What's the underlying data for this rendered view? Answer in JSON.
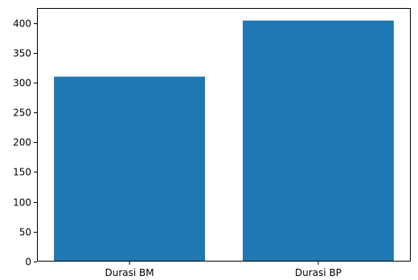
{
  "chart_data": {
    "type": "bar",
    "categories": [
      "Durasi BM",
      "Durasi BP"
    ],
    "values": [
      310,
      404
    ],
    "ylim": [
      0,
      425
    ],
    "yticks": [
      0,
      50,
      100,
      150,
      200,
      250,
      300,
      350,
      400
    ],
    "title": "",
    "xlabel": "",
    "ylabel": "",
    "grid": false,
    "bar_color": "#1f77b4"
  }
}
